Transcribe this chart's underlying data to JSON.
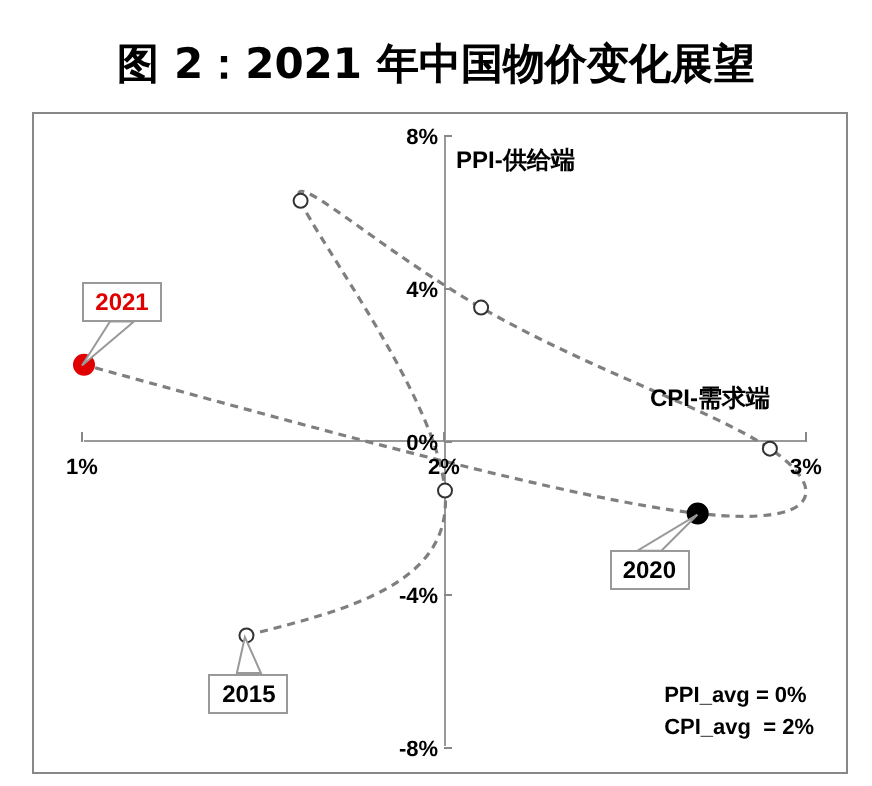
{
  "chart_data": {
    "type": "line",
    "title": "图 2：2021 年中国物价变化展望",
    "xlabel": "CPI-需求端",
    "ylabel": "PPI-供给端",
    "x": [
      1.45,
      2.0,
      1.6,
      2.1,
      2.9,
      2.7,
      1.0
    ],
    "series": [
      {
        "color": "#7f7f7f",
        "values": [
          -5.1,
          -1.3,
          6.3,
          3.5,
          -0.2,
          -1.9,
          2.0
        ],
        "colors": [
          "#ffffff",
          "#ffffff",
          "#ffffff",
          "#ffffff",
          "#ffffff",
          "#000000",
          "#e00000"
        ]
      }
    ],
    "xlim": [
      1,
      3
    ],
    "xticks": [
      {
        "value": 1,
        "label": "1%"
      },
      {
        "value": 2,
        "label": "2%"
      },
      {
        "value": 3,
        "label": "3%"
      }
    ],
    "ylim": [
      -8,
      8
    ],
    "yticks": [
      {
        "value": -8,
        "label": "-8%"
      },
      {
        "value": -4,
        "label": "-4%"
      },
      {
        "value": 0,
        "label": "0%"
      },
      {
        "value": 4,
        "label": "4%"
      },
      {
        "value": 8,
        "label": "8%"
      }
    ],
    "marker": "circle",
    "line_style": "dashed",
    "grid": false,
    "legend": false,
    "annotations": [
      {
        "text": "2021",
        "x": 1.0,
        "y": 2.0
      },
      {
        "text": "2020",
        "x": 2.7,
        "y": -1.9
      },
      {
        "text": "2015",
        "x": 1.45,
        "y": -5.1
      },
      "PPI_avg = 0%",
      "CPI_avg  = 2%"
    ]
  }
}
